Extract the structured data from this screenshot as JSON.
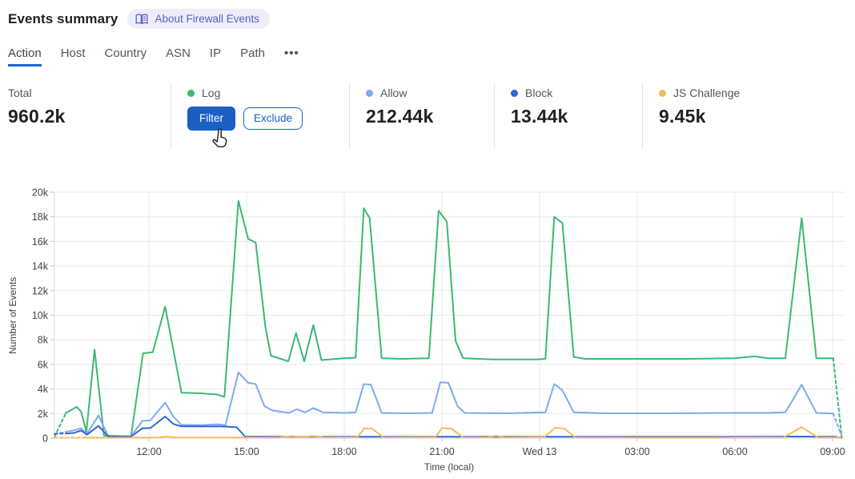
{
  "header": {
    "title": "Events summary",
    "about_button": "About Firewall Events"
  },
  "tabs": {
    "items": [
      {
        "label": "Action",
        "active": true
      },
      {
        "label": "Host",
        "active": false
      },
      {
        "label": "Country",
        "active": false
      },
      {
        "label": "ASN",
        "active": false
      },
      {
        "label": "IP",
        "active": false
      },
      {
        "label": "Path",
        "active": false
      }
    ],
    "more_label": "•••"
  },
  "stats": {
    "columns": [
      {
        "id": "total",
        "label": "Total",
        "value": "960.2k",
        "dot_color": null
      },
      {
        "id": "log",
        "label": "Log",
        "value": null,
        "dot_color": "#3dba70",
        "buttons": [
          {
            "id": "filter",
            "label": "Filter",
            "variant": "primary"
          },
          {
            "id": "exclude",
            "label": "Exclude",
            "variant": "secondary"
          }
        ]
      },
      {
        "id": "allow",
        "label": "Allow",
        "value": "212.44k",
        "dot_color": "#7caaf4"
      },
      {
        "id": "block",
        "label": "Block",
        "value": "13.44k",
        "dot_color": "#3366d6"
      },
      {
        "id": "js-challenge",
        "label": "JS Challenge",
        "value": "9.45k",
        "dot_color": "#f3ba62"
      }
    ]
  },
  "chart_data": {
    "type": "line",
    "xlabel": "Time (local)",
    "ylabel": "Number of Events",
    "ylim": [
      0,
      20000
    ],
    "grid": true,
    "legend_position": "top-stats-row",
    "x_unit": "hours_after_09:00",
    "y_ticks": [
      {
        "value": 0,
        "label": "0"
      },
      {
        "value": 2000,
        "label": "2k"
      },
      {
        "value": 4000,
        "label": "4k"
      },
      {
        "value": 6000,
        "label": "6k"
      },
      {
        "value": 8000,
        "label": "8k"
      },
      {
        "value": 10000,
        "label": "10k"
      },
      {
        "value": 12000,
        "label": "12k"
      },
      {
        "value": 14000,
        "label": "14k"
      },
      {
        "value": 16000,
        "label": "16k"
      },
      {
        "value": 18000,
        "label": "18k"
      },
      {
        "value": 20000,
        "label": "20k"
      }
    ],
    "x_ticks": [
      {
        "t": 3,
        "label": "12:00"
      },
      {
        "t": 6,
        "label": "15:00"
      },
      {
        "t": 9,
        "label": "18:00"
      },
      {
        "t": 12,
        "label": "21:00"
      },
      {
        "t": 15,
        "label": "Wed 13"
      },
      {
        "t": 18,
        "label": "03:00"
      },
      {
        "t": 21,
        "label": "06:00"
      },
      {
        "t": 24,
        "label": "09:00"
      }
    ],
    "series": [
      {
        "name": "Log",
        "color": "#3bb873",
        "dash_head": 1,
        "dash_tail": 1,
        "points": [
          [
            0.1,
            100
          ],
          [
            0.45,
            2050
          ],
          [
            0.62,
            2300
          ],
          [
            0.78,
            2550
          ],
          [
            0.92,
            2150
          ],
          [
            1.08,
            500
          ],
          [
            1.33,
            7200
          ],
          [
            1.62,
            200
          ],
          [
            2.45,
            150
          ],
          [
            2.82,
            6900
          ],
          [
            3.12,
            7000
          ],
          [
            3.5,
            10700
          ],
          [
            4.0,
            3700
          ],
          [
            4.6,
            3650
          ],
          [
            5.1,
            3550
          ],
          [
            5.32,
            3350
          ],
          [
            5.75,
            19300
          ],
          [
            6.05,
            16200
          ],
          [
            6.28,
            15900
          ],
          [
            6.58,
            9000
          ],
          [
            6.75,
            6700
          ],
          [
            7.05,
            6450
          ],
          [
            7.28,
            6250
          ],
          [
            7.52,
            8550
          ],
          [
            7.77,
            6250
          ],
          [
            8.05,
            9200
          ],
          [
            8.3,
            6350
          ],
          [
            9.0,
            6500
          ],
          [
            9.35,
            6550
          ],
          [
            9.6,
            18700
          ],
          [
            9.78,
            17900
          ],
          [
            10.15,
            6500
          ],
          [
            10.8,
            6450
          ],
          [
            11.6,
            6500
          ],
          [
            11.9,
            18500
          ],
          [
            12.15,
            17600
          ],
          [
            12.42,
            7900
          ],
          [
            12.65,
            6500
          ],
          [
            13.6,
            6400
          ],
          [
            14.9,
            6400
          ],
          [
            15.18,
            6450
          ],
          [
            15.45,
            18000
          ],
          [
            15.7,
            17500
          ],
          [
            16.05,
            6600
          ],
          [
            16.4,
            6450
          ],
          [
            18.0,
            6450
          ],
          [
            19.5,
            6450
          ],
          [
            21.0,
            6500
          ],
          [
            21.6,
            6650
          ],
          [
            22.0,
            6500
          ],
          [
            22.55,
            6500
          ],
          [
            23.05,
            17900
          ],
          [
            23.5,
            6500
          ],
          [
            24.02,
            6500
          ],
          [
            24.28,
            100
          ]
        ]
      },
      {
        "name": "Allow",
        "color": "#7caaf4",
        "dash_head": 1,
        "dash_tail": 1,
        "points": [
          [
            0.1,
            330
          ],
          [
            0.45,
            520
          ],
          [
            0.7,
            640
          ],
          [
            0.92,
            800
          ],
          [
            1.1,
            350
          ],
          [
            1.45,
            1850
          ],
          [
            1.75,
            150
          ],
          [
            2.45,
            150
          ],
          [
            2.8,
            1400
          ],
          [
            3.05,
            1450
          ],
          [
            3.5,
            2900
          ],
          [
            3.75,
            1750
          ],
          [
            4.0,
            1080
          ],
          [
            4.6,
            1060
          ],
          [
            5.1,
            1120
          ],
          [
            5.35,
            1060
          ],
          [
            5.75,
            5350
          ],
          [
            6.05,
            4500
          ],
          [
            6.28,
            4400
          ],
          [
            6.55,
            2600
          ],
          [
            6.8,
            2250
          ],
          [
            7.05,
            2150
          ],
          [
            7.3,
            2050
          ],
          [
            7.55,
            2350
          ],
          [
            7.8,
            2100
          ],
          [
            8.05,
            2450
          ],
          [
            8.35,
            2100
          ],
          [
            9.0,
            2050
          ],
          [
            9.35,
            2100
          ],
          [
            9.6,
            4400
          ],
          [
            9.82,
            4350
          ],
          [
            10.15,
            2050
          ],
          [
            11.0,
            2020
          ],
          [
            11.7,
            2050
          ],
          [
            11.95,
            4550
          ],
          [
            12.2,
            4500
          ],
          [
            12.48,
            2600
          ],
          [
            12.7,
            2050
          ],
          [
            14.0,
            2020
          ],
          [
            15.18,
            2100
          ],
          [
            15.45,
            4400
          ],
          [
            15.7,
            3900
          ],
          [
            16.05,
            2100
          ],
          [
            17.0,
            2020
          ],
          [
            19.0,
            2020
          ],
          [
            21.0,
            2050
          ],
          [
            22.0,
            2050
          ],
          [
            22.55,
            2100
          ],
          [
            23.05,
            4350
          ],
          [
            23.5,
            2050
          ],
          [
            24.02,
            2000
          ],
          [
            24.28,
            150
          ]
        ]
      },
      {
        "name": "Block",
        "color": "#3366d6",
        "dash_head": 1,
        "dash_tail": 1,
        "points": [
          [
            0.1,
            350
          ],
          [
            0.45,
            380
          ],
          [
            0.7,
            430
          ],
          [
            0.92,
            620
          ],
          [
            1.1,
            280
          ],
          [
            1.45,
            1000
          ],
          [
            1.75,
            130
          ],
          [
            2.45,
            130
          ],
          [
            2.8,
            800
          ],
          [
            3.05,
            830
          ],
          [
            3.5,
            1760
          ],
          [
            3.75,
            1150
          ],
          [
            4.0,
            960
          ],
          [
            4.6,
            950
          ],
          [
            5.1,
            960
          ],
          [
            5.4,
            940
          ],
          [
            5.7,
            880
          ],
          [
            5.95,
            130
          ],
          [
            7.0,
            120
          ],
          [
            9.0,
            120
          ],
          [
            12.0,
            120
          ],
          [
            15.0,
            120
          ],
          [
            18.0,
            120
          ],
          [
            21.0,
            120
          ],
          [
            23.0,
            130
          ],
          [
            24.05,
            120
          ],
          [
            24.28,
            60
          ]
        ]
      },
      {
        "name": "JS Challenge",
        "color": "#f3ba62",
        "dash_head": 1,
        "dash_tail": 0,
        "points": [
          [
            0.1,
            40
          ],
          [
            1.0,
            40
          ],
          [
            2.0,
            40
          ],
          [
            3.3,
            50
          ],
          [
            3.55,
            130
          ],
          [
            3.9,
            50
          ],
          [
            5.0,
            40
          ],
          [
            6.0,
            50
          ],
          [
            7.0,
            60
          ],
          [
            7.4,
            160
          ],
          [
            7.7,
            90
          ],
          [
            8.05,
            170
          ],
          [
            8.4,
            60
          ],
          [
            9.4,
            70
          ],
          [
            9.62,
            800
          ],
          [
            9.85,
            780
          ],
          [
            10.2,
            60
          ],
          [
            11.8,
            80
          ],
          [
            12.0,
            820
          ],
          [
            12.3,
            760
          ],
          [
            12.65,
            60
          ],
          [
            13.4,
            60
          ],
          [
            13.65,
            200
          ],
          [
            13.95,
            50
          ],
          [
            15.15,
            90
          ],
          [
            15.48,
            850
          ],
          [
            15.75,
            790
          ],
          [
            16.1,
            60
          ],
          [
            18.0,
            40
          ],
          [
            20.0,
            40
          ],
          [
            22.5,
            70
          ],
          [
            23.05,
            900
          ],
          [
            23.55,
            60
          ],
          [
            24.25,
            40
          ]
        ]
      }
    ]
  }
}
